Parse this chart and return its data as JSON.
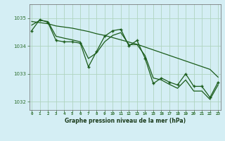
{
  "xlabel": "Graphe pression niveau de la mer (hPa)",
  "background_color": "#d4eef4",
  "plot_bg_color": "#d4eef4",
  "grid_color": "#b0d4c0",
  "line_color": "#1a5c1a",
  "hours": [
    0,
    1,
    2,
    3,
    4,
    5,
    6,
    7,
    8,
    9,
    10,
    11,
    12,
    13,
    14,
    15,
    16,
    17,
    18,
    19,
    20,
    21,
    22,
    23
  ],
  "series1": [
    1034.55,
    1034.95,
    1034.85,
    1034.2,
    1034.15,
    1034.15,
    1034.1,
    1033.25,
    1033.8,
    1034.35,
    1034.55,
    1034.6,
    1034.0,
    1034.2,
    1033.55,
    1032.65,
    1032.85,
    1032.7,
    1032.6,
    1033.0,
    1032.55,
    1032.55,
    1032.15,
    1032.7
  ],
  "trend_line": [
    1034.88,
    1034.84,
    1034.8,
    1034.72,
    1034.68,
    1034.64,
    1034.58,
    1034.52,
    1034.44,
    1034.38,
    1034.3,
    1034.22,
    1034.14,
    1034.06,
    1033.96,
    1033.86,
    1033.76,
    1033.66,
    1033.56,
    1033.46,
    1033.36,
    1033.26,
    1033.16,
    1032.88
  ],
  "smooth_line": [
    1034.75,
    1034.92,
    1034.88,
    1034.35,
    1034.28,
    1034.22,
    1034.15,
    1033.55,
    1033.75,
    1034.15,
    1034.38,
    1034.48,
    1034.05,
    1034.05,
    1033.65,
    1032.85,
    1032.78,
    1032.62,
    1032.48,
    1032.78,
    1032.38,
    1032.38,
    1032.08,
    1032.6
  ],
  "ylim": [
    1031.7,
    1035.5
  ],
  "yticks": [
    1032,
    1033,
    1034,
    1035
  ],
  "xticks": [
    0,
    1,
    2,
    3,
    4,
    5,
    6,
    7,
    8,
    9,
    10,
    11,
    12,
    13,
    14,
    15,
    16,
    17,
    18,
    19,
    20,
    21,
    22,
    23
  ]
}
